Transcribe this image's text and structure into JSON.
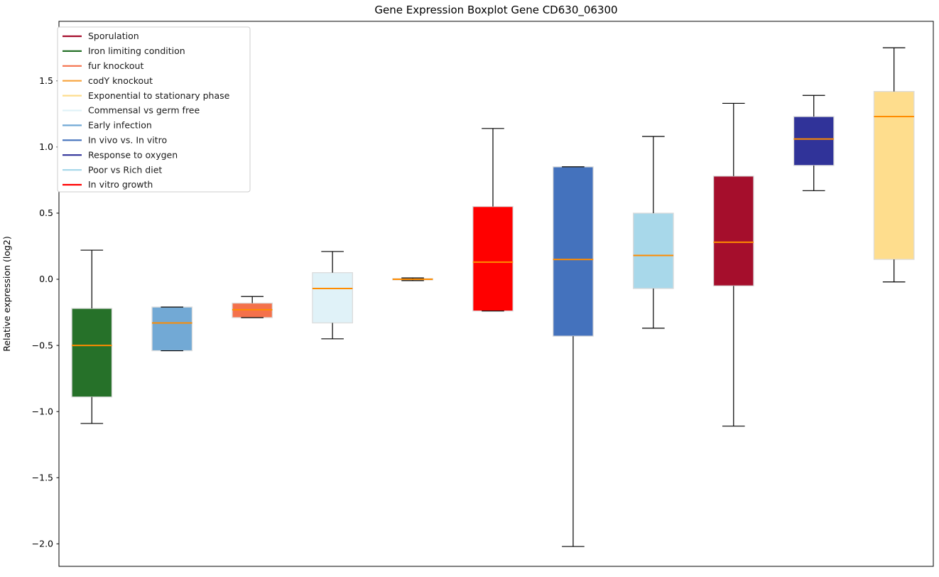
{
  "chart_data": {
    "type": "boxplot",
    "title": "Gene Expression Boxplot Gene CD630_06300",
    "ylabel": "Relative expression (log2)",
    "xlabel": "",
    "ylim": [
      -2.17,
      1.95
    ],
    "xlim": [
      0.59,
      11.49
    ],
    "yticks": [
      1.5,
      1.0,
      0.5,
      0.0,
      -0.5,
      -1.0,
      -1.5,
      -2.0
    ],
    "xticks": [],
    "grid": false,
    "legend": {
      "position": "upper left",
      "entries": [
        {
          "label": "Sporulation",
          "color": "#a50e2c"
        },
        {
          "label": "Iron limiting condition",
          "color": "#267129"
        },
        {
          "label": "fur knockout",
          "color": "#f4714b"
        },
        {
          "label": "codY knockout",
          "color": "#f8a33b"
        },
        {
          "label": "Exponential to stationary phase",
          "color": "#fedd8d"
        },
        {
          "label": "Commensal vs germ free",
          "color": "#e0f2f8"
        },
        {
          "label": "Early infection",
          "color": "#72a9d5"
        },
        {
          "label": "In vivo vs. In vitro",
          "color": "#4472bd"
        },
        {
          "label": "Response to oxygen",
          "color": "#303399"
        },
        {
          "label": "Poor vs Rich diet",
          "color": "#a8d8ea"
        },
        {
          "label": "In vitro growth",
          "color": "#ff0000"
        }
      ]
    },
    "style": {
      "median_color": "#ff8c00",
      "whisker_color": "#000000",
      "box_edge_color": "#dcdcdc",
      "axes_color": "#000000",
      "legend_border_color": "#cccccc",
      "box_width": 0.5,
      "cap_width": 0.28
    },
    "series": [
      {
        "label": "Iron limiting condition",
        "color": "#267129",
        "position": 1,
        "whisker_low": -1.09,
        "q1": -0.89,
        "median": -0.5,
        "q3": -0.22,
        "whisker_high": 0.22
      },
      {
        "label": "Early infection",
        "color": "#72a9d5",
        "position": 2,
        "whisker_low": -0.54,
        "q1": -0.54,
        "median": -0.33,
        "q3": -0.21,
        "whisker_high": -0.21
      },
      {
        "label": "fur knockout",
        "color": "#f4714b",
        "position": 3,
        "whisker_low": -0.29,
        "q1": -0.29,
        "median": -0.23,
        "q3": -0.18,
        "whisker_high": -0.13
      },
      {
        "label": "Commensal vs germ free",
        "color": "#e0f2f8",
        "position": 4,
        "whisker_low": -0.45,
        "q1": -0.33,
        "median": -0.07,
        "q3": 0.05,
        "whisker_high": 0.21
      },
      {
        "label": "codY knockout",
        "color": "#f8a33b",
        "position": 5,
        "whisker_low": -0.01,
        "q1": -0.005,
        "median": 0.0,
        "q3": 0.005,
        "whisker_high": 0.01
      },
      {
        "label": "In vitro growth",
        "color": "#ff0000",
        "position": 6,
        "whisker_low": -0.24,
        "q1": -0.24,
        "median": 0.13,
        "q3": 0.55,
        "whisker_high": 1.14
      },
      {
        "label": "In vivo vs. In vitro",
        "color": "#4472bd",
        "position": 7,
        "whisker_low": -2.02,
        "q1": -0.43,
        "median": 0.15,
        "q3": 0.85,
        "whisker_high": 0.85
      },
      {
        "label": "Poor vs Rich diet",
        "color": "#a8d8ea",
        "position": 8,
        "whisker_low": -0.37,
        "q1": -0.07,
        "median": 0.18,
        "q3": 0.5,
        "whisker_high": 1.08
      },
      {
        "label": "Sporulation",
        "color": "#a50e2c",
        "position": 9,
        "whisker_low": -1.11,
        "q1": -0.05,
        "median": 0.28,
        "q3": 0.78,
        "whisker_high": 1.33
      },
      {
        "label": "Response to oxygen",
        "color": "#303399",
        "position": 10,
        "whisker_low": 0.67,
        "q1": 0.86,
        "median": 1.06,
        "q3": 1.23,
        "whisker_high": 1.39
      },
      {
        "label": "Exponential to stationary phase",
        "color": "#fedd8d",
        "position": 11,
        "whisker_low": -0.02,
        "q1": 0.15,
        "median": 1.23,
        "q3": 1.42,
        "whisker_high": 1.75
      }
    ]
  }
}
